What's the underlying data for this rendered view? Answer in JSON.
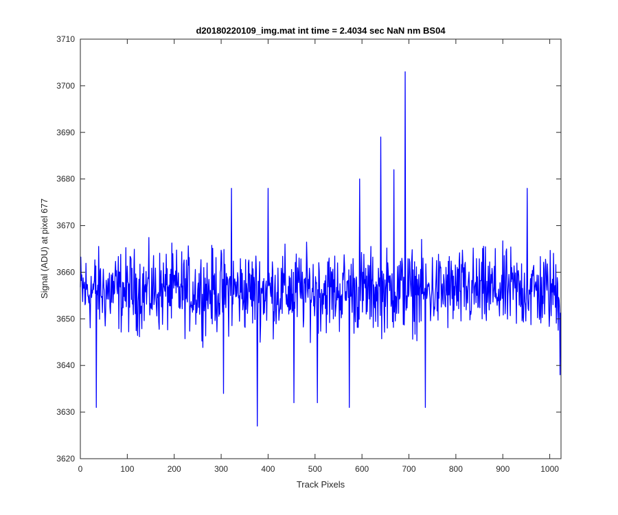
{
  "chart_data": {
    "type": "line",
    "title": "d20180220109_img.mat int time = 2.4034 sec  NaN nm BS04",
    "xlabel": "Track Pixels",
    "ylabel": "Signal (ADU) at pixel 677",
    "xlim": [
      0,
      1024
    ],
    "ylim": [
      3620,
      3710
    ],
    "xticks": [
      0,
      100,
      200,
      300,
      400,
      500,
      600,
      700,
      800,
      900,
      1000
    ],
    "yticks": [
      3620,
      3630,
      3640,
      3650,
      3660,
      3670,
      3680,
      3690,
      3700,
      3710
    ],
    "grid": false,
    "series": [
      {
        "color": "#0000ff",
        "baseline": 3656,
        "noise_amplitude": 8,
        "n_points": 1024,
        "notable_points": [
          {
            "x": 34,
            "y": 3631
          },
          {
            "x": 305,
            "y": 3634
          },
          {
            "x": 322,
            "y": 3678
          },
          {
            "x": 377,
            "y": 3627
          },
          {
            "x": 400,
            "y": 3678
          },
          {
            "x": 455,
            "y": 3632
          },
          {
            "x": 505,
            "y": 3632
          },
          {
            "x": 573,
            "y": 3631
          },
          {
            "x": 595,
            "y": 3680
          },
          {
            "x": 640,
            "y": 3689
          },
          {
            "x": 668,
            "y": 3682
          },
          {
            "x": 692,
            "y": 3703
          },
          {
            "x": 735,
            "y": 3631
          },
          {
            "x": 952,
            "y": 3678
          },
          {
            "x": 1022,
            "y": 3638
          }
        ]
      }
    ]
  },
  "colors": {
    "line": "#0000ff",
    "axes": "#262626",
    "background": "#ffffff"
  }
}
